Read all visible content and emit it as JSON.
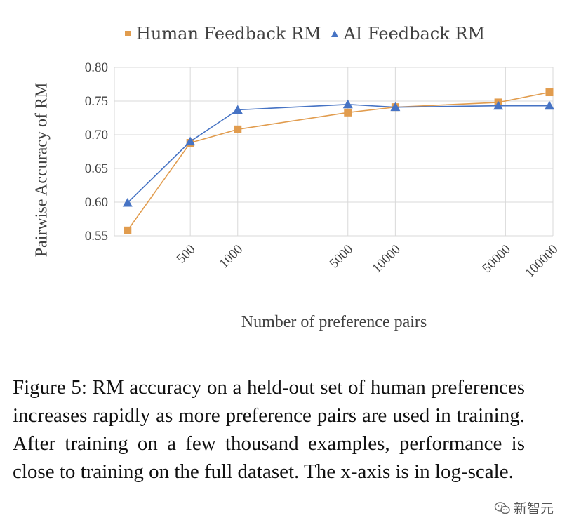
{
  "chart_data": {
    "type": "line",
    "x_scale": "log",
    "x": [
      200,
      500,
      1000,
      5000,
      10000,
      45000,
      95000
    ],
    "x_tick_values": [
      500,
      1000,
      5000,
      10000,
      50000,
      100000
    ],
    "x_tick_labels": [
      "500",
      "1000",
      "5000",
      "10000",
      "50000",
      "100000"
    ],
    "y_ticks": [
      0.55,
      0.6,
      0.65,
      0.7,
      0.75,
      0.8
    ],
    "y_tick_labels": [
      "0.55",
      "0.60",
      "0.65",
      "0.70",
      "0.75",
      "0.80"
    ],
    "ylim": [
      0.55,
      0.8
    ],
    "series": [
      {
        "name": "Human Feedback RM",
        "marker": "square",
        "color": "#E19C4E",
        "values": [
          0.558,
          0.688,
          0.708,
          0.733,
          0.741,
          0.748,
          0.763
        ]
      },
      {
        "name": "AI Feedback RM",
        "marker": "triangle",
        "color": "#4673C4",
        "values": [
          0.599,
          0.69,
          0.737,
          0.745,
          0.741,
          0.743,
          0.743
        ]
      }
    ],
    "xlabel": "Number of preference pairs",
    "ylabel": "Pairwise Accuracy of RM",
    "legend_position": "top",
    "grid": true
  },
  "caption": "Figure 5: RM accuracy on a held-out set of human preferences increases rapidly as more preference pairs are used in training. After training on a few thousand examples, performance is close to training on the full dataset. The x-axis is in log-scale.",
  "watermark": {
    "text": "新智元",
    "icon": "wechat-icon"
  }
}
